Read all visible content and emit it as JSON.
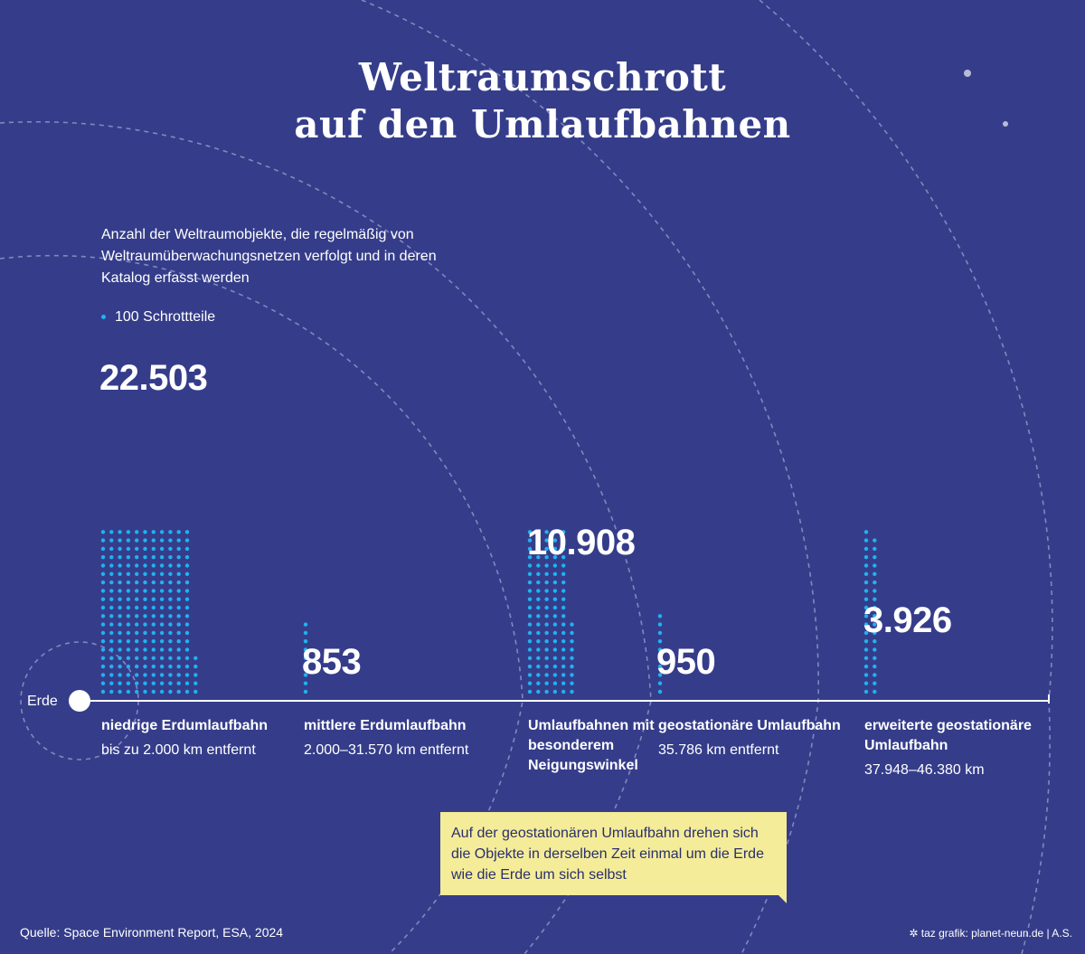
{
  "title": {
    "line1": "Weltraumschrott",
    "line2": "auf den Umlaufbahnen"
  },
  "subtitle": "Anzahl der Weltraumobjekte, die regelmäßig von Weltraumüberwachungsnetzen verfolgt und in deren Katalog erfasst werden",
  "legend": {
    "label": "100 Schrottteile",
    "unit": 100
  },
  "earth_label": "Erde",
  "chart_data": {
    "type": "bar",
    "categories": [
      "niedrige Erdumlaufbahn",
      "mittlere Erdumlaufbahn",
      "Umlaufbahnen mit besonderem Neigungswinkel",
      "geostationäre Umlaufbahn",
      "erweiterte geostationäre Umlaufbahn"
    ],
    "values": [
      22503,
      853,
      10908,
      950,
      3926
    ],
    "value_labels": [
      "22.503",
      "853",
      "10.908",
      "950",
      "3.926"
    ],
    "descriptions": [
      "bis zu 2.000 km entfernt",
      "2.000–31.570 km entfernt",
      "",
      "35.786 km entfernt",
      "37.948–46.380 km"
    ],
    "dot_value": 100,
    "title": "Weltraumschrott auf den Umlaufbahnen",
    "xlabel": "",
    "ylabel": "Anzahl der Weltraumobjekte"
  },
  "callout": "Auf der geostationären Umlaufbahn drehen sich die Objekte in derselben Zeit einmal um die Erde wie die Erde um sich selbst",
  "source": "Quelle: Space Environment Report, ESA, 2024",
  "credit": "taz grafik: planet-neun.de | A.S.",
  "colors": {
    "background": "#353d8a",
    "dots": "#1fb3f0",
    "callout": "#f4ec98",
    "text": "#ffffff"
  }
}
